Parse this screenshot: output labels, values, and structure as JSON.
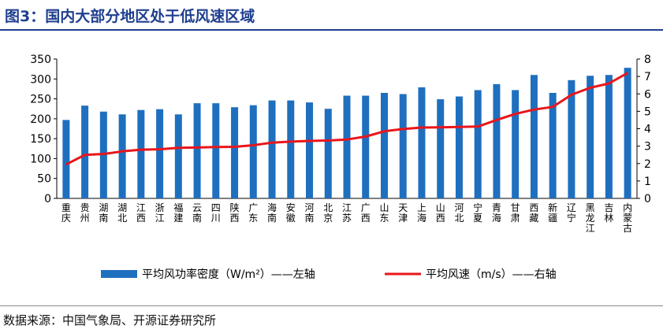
{
  "figure": {
    "title": "图3：国内大部分地区处于低风速区域",
    "source": "数据来源：中国气象局、开源证券研究所"
  },
  "colors": {
    "title": "#1f3f8f",
    "bar": "#1f6fbf",
    "line": "#e8161b"
  },
  "chart_data": {
    "type": "bar",
    "categories": [
      "重庆",
      "贵州",
      "湖南",
      "湖北",
      "江西",
      "浙江",
      "福建",
      "云南",
      "四川",
      "陕西",
      "广东",
      "海南",
      "安徽",
      "河南",
      "北京",
      "江苏",
      "广西",
      "山东",
      "天津",
      "上海",
      "山西",
      "河北",
      "宁夏",
      "青海",
      "甘肃",
      "西藏",
      "新疆",
      "辽宁",
      "黑龙江",
      "吉林",
      "内蒙古"
    ],
    "series": [
      {
        "name": "平均风功率密度（W/m²）——左轴",
        "type": "bar",
        "axis": "left",
        "values": [
          197,
          233,
          218,
          211,
          222,
          224,
          211,
          239,
          239,
          229,
          234,
          246,
          246,
          241,
          225,
          258,
          258,
          265,
          262,
          279,
          249,
          256,
          272,
          287,
          272,
          310,
          265,
          297,
          308,
          310,
          328
        ]
      },
      {
        "name": "平均风速（m/s）——右轴",
        "type": "line",
        "axis": "right",
        "values": [
          1.95,
          2.5,
          2.55,
          2.7,
          2.8,
          2.82,
          2.9,
          2.92,
          2.95,
          2.96,
          3.05,
          3.2,
          3.26,
          3.3,
          3.32,
          3.38,
          3.55,
          3.85,
          3.98,
          4.07,
          4.08,
          4.1,
          4.12,
          4.5,
          4.85,
          5.1,
          5.25,
          5.95,
          6.35,
          6.6,
          7.2
        ]
      }
    ],
    "y_left": {
      "min": 0,
      "max": 350,
      "ticks": [
        "0",
        "50",
        "100",
        "150",
        "200",
        "250",
        "300",
        "350"
      ]
    },
    "y_right": {
      "min": 0,
      "max": 8,
      "ticks": [
        "0",
        "1",
        "2",
        "3",
        "4",
        "5",
        "6",
        "7",
        "8"
      ]
    },
    "grid": false,
    "legend": "bottom"
  }
}
